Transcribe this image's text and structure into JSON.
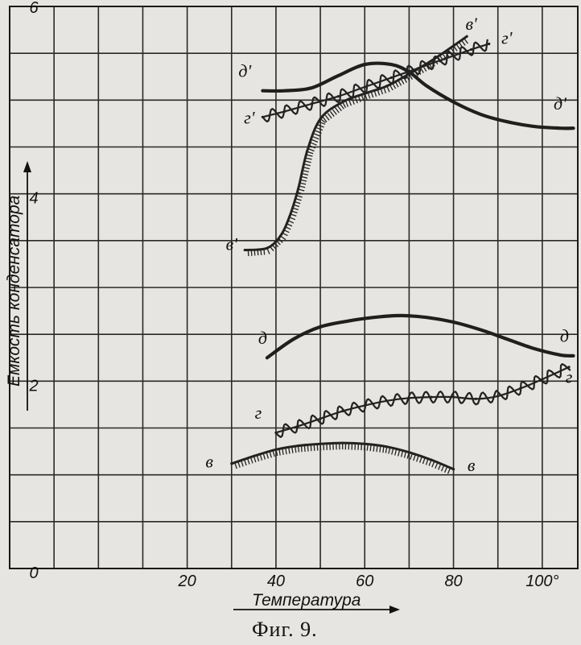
{
  "chart_data": {
    "type": "line",
    "title": "",
    "caption": "Фиг. 9.",
    "xlabel": "Температура",
    "ylabel": "Емкость конденсатора",
    "xlim": [
      -20,
      108
    ],
    "ylim": [
      0,
      6
    ],
    "grid": true,
    "x_tick_labels": [
      {
        "value": 20,
        "text": "20"
      },
      {
        "value": 40,
        "text": "40"
      },
      {
        "value": 60,
        "text": "60"
      },
      {
        "value": 80,
        "text": "80"
      },
      {
        "value": 100,
        "text": "100°"
      }
    ],
    "y_tick_labels": [
      {
        "value": 0,
        "text": "0"
      },
      {
        "value": 2,
        "text": "2"
      },
      {
        "value": 4,
        "text": "4"
      },
      {
        "value": 6,
        "text": "6"
      }
    ],
    "series": [
      {
        "name": "д",
        "style": "thick",
        "x": [
          38,
          44,
          50,
          56,
          62,
          68,
          74,
          80,
          86,
          92,
          98,
          104,
          107
        ],
        "y": [
          2.25,
          2.45,
          2.58,
          2.64,
          2.68,
          2.7,
          2.68,
          2.63,
          2.55,
          2.45,
          2.35,
          2.28,
          2.27
        ]
      },
      {
        "name": "г",
        "style": "wavy",
        "x": [
          40,
          45,
          50,
          55,
          60,
          65,
          70,
          75,
          80,
          85,
          90,
          95,
          100,
          106
        ],
        "y": [
          1.45,
          1.52,
          1.6,
          1.68,
          1.74,
          1.79,
          1.82,
          1.83,
          1.83,
          1.81,
          1.84,
          1.92,
          2.02,
          2.15
        ]
      },
      {
        "name": "в",
        "style": "hatched",
        "x": [
          30,
          35,
          40,
          45,
          50,
          55,
          60,
          65,
          70,
          75,
          80
        ],
        "y": [
          1.12,
          1.2,
          1.27,
          1.31,
          1.33,
          1.34,
          1.33,
          1.3,
          1.24,
          1.16,
          1.06
        ]
      },
      {
        "name": "д'",
        "style": "thick",
        "x": [
          37,
          42,
          48,
          54,
          60,
          66,
          70,
          74,
          80,
          86,
          92,
          98,
          104,
          107
        ],
        "y": [
          5.1,
          5.1,
          5.13,
          5.26,
          5.38,
          5.38,
          5.3,
          5.15,
          4.98,
          4.85,
          4.77,
          4.72,
          4.7,
          4.7
        ]
      },
      {
        "name": "г'",
        "style": "wavy",
        "x": [
          37,
          42,
          48,
          54,
          60,
          66,
          72,
          78,
          84,
          88
        ],
        "y": [
          4.82,
          4.88,
          4.96,
          5.04,
          5.14,
          5.24,
          5.34,
          5.44,
          5.54,
          5.6
        ]
      },
      {
        "name": "в'",
        "style": "hatched",
        "x": [
          33,
          38,
          41,
          43,
          45,
          47,
          50,
          55,
          60,
          65,
          70,
          75,
          80,
          83
        ],
        "y": [
          3.4,
          3.42,
          3.55,
          3.75,
          4.05,
          4.45,
          4.8,
          4.98,
          5.07,
          5.15,
          5.28,
          5.42,
          5.58,
          5.68
        ]
      }
    ],
    "curve_labels": [
      {
        "text": "д",
        "series": "д",
        "x": 37,
        "y": 2.4
      },
      {
        "text": "д",
        "series": "д",
        "x": 105,
        "y": 2.42
      },
      {
        "text": "г",
        "series": "г",
        "x": 36,
        "y": 1.6
      },
      {
        "text": "г",
        "series": "г",
        "x": 106,
        "y": 1.98
      },
      {
        "text": "в",
        "series": "в",
        "x": 25,
        "y": 1.08
      },
      {
        "text": "в",
        "series": "в",
        "x": 84,
        "y": 1.04
      },
      {
        "text": "д'",
        "series": "д'",
        "x": 33,
        "y": 5.25
      },
      {
        "text": "д'",
        "series": "д'",
        "x": 104,
        "y": 4.9
      },
      {
        "text": "г'",
        "series": "г'",
        "x": 34,
        "y": 4.75
      },
      {
        "text": "г'",
        "series": "г'",
        "x": 92,
        "y": 5.6
      },
      {
        "text": "в'",
        "series": "в'",
        "x": 30,
        "y": 3.4
      },
      {
        "text": "в'",
        "series": "в'",
        "x": 84,
        "y": 5.75
      }
    ]
  }
}
